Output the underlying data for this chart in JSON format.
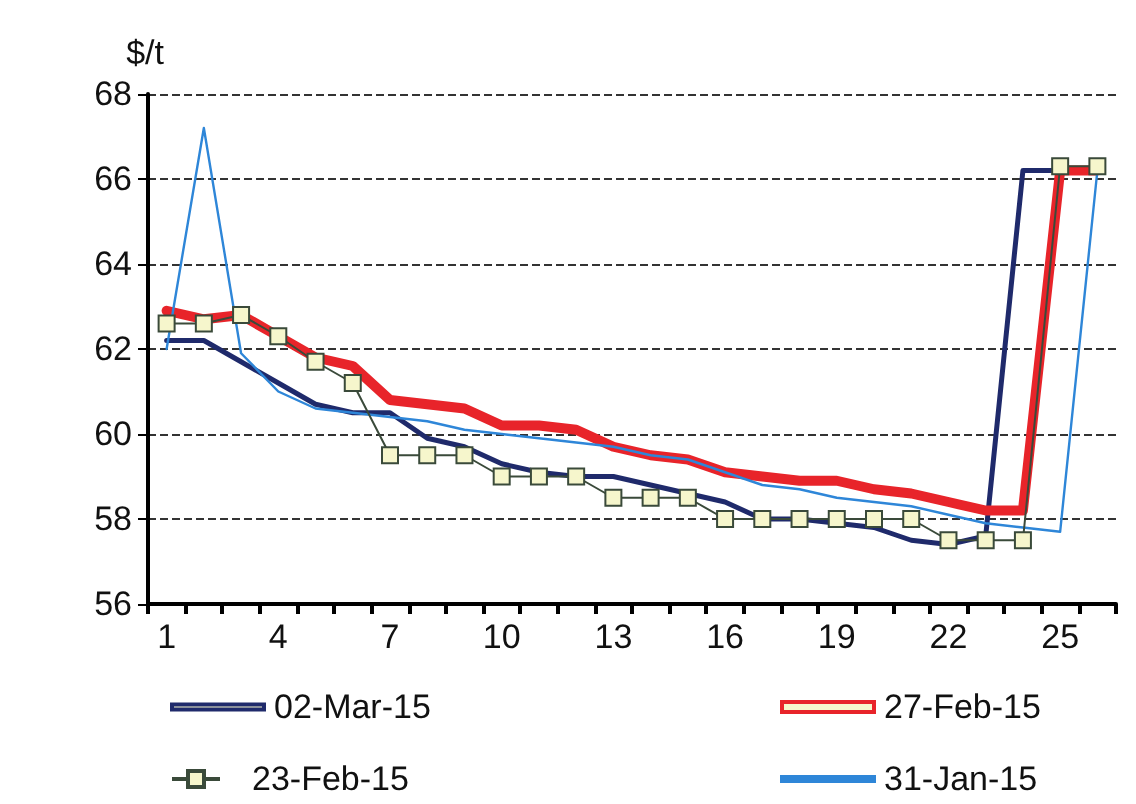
{
  "chart_data": {
    "type": "line",
    "ylabel": "$/t",
    "categories": [
      "1",
      null,
      null,
      "4",
      null,
      null,
      "7",
      null,
      null,
      "10",
      null,
      null,
      "13",
      null,
      null,
      "16",
      null,
      null,
      "19",
      null,
      null,
      "22",
      null,
      null,
      "25",
      null
    ],
    "ylim": [
      56,
      68
    ],
    "yticks": [
      56,
      58,
      60,
      62,
      64,
      66,
      68
    ],
    "grid": "y",
    "legend": "bottom",
    "marker": "none",
    "line_style": "solid",
    "series": [
      {
        "name": "02-Mar-15",
        "color": "#1f2a6b",
        "values": [
          62.2,
          62.2,
          61.7,
          61.2,
          60.7,
          60.5,
          60.5,
          59.9,
          59.7,
          59.3,
          59.1,
          59.0,
          59.0,
          58.8,
          58.6,
          58.4,
          58.0,
          58.0,
          57.9,
          57.8,
          57.5,
          57.4,
          57.6,
          66.2,
          66.2,
          66.2
        ]
      },
      {
        "name": "27-Feb-15",
        "color": "#e8242a",
        "values": [
          62.9,
          62.7,
          62.8,
          62.3,
          61.8,
          61.6,
          60.8,
          60.7,
          60.6,
          60.2,
          60.2,
          60.1,
          59.7,
          59.5,
          59.4,
          59.1,
          59.0,
          58.9,
          58.9,
          58.7,
          58.6,
          58.4,
          58.2,
          58.2,
          66.2,
          66.2
        ]
      },
      {
        "name": "23-Feb-15",
        "color": "#3a4a3a",
        "marker": "square",
        "values": [
          62.6,
          62.6,
          62.8,
          62.3,
          61.7,
          61.2,
          59.5,
          59.5,
          59.5,
          59.0,
          59.0,
          59.0,
          58.5,
          58.5,
          58.5,
          58.0,
          58.0,
          58.0,
          58.0,
          58.0,
          58.0,
          57.5,
          57.5,
          57.5,
          66.3,
          66.3
        ]
      },
      {
        "name": "31-Jan-15",
        "color": "#2e86d8",
        "values": [
          62.0,
          67.2,
          61.9,
          61.0,
          60.6,
          60.5,
          60.4,
          60.3,
          60.1,
          60.0,
          59.9,
          59.8,
          59.7,
          59.5,
          59.4,
          59.1,
          58.8,
          58.7,
          58.5,
          58.4,
          58.3,
          58.1,
          57.9,
          57.8,
          57.7,
          66.2
        ]
      }
    ]
  }
}
